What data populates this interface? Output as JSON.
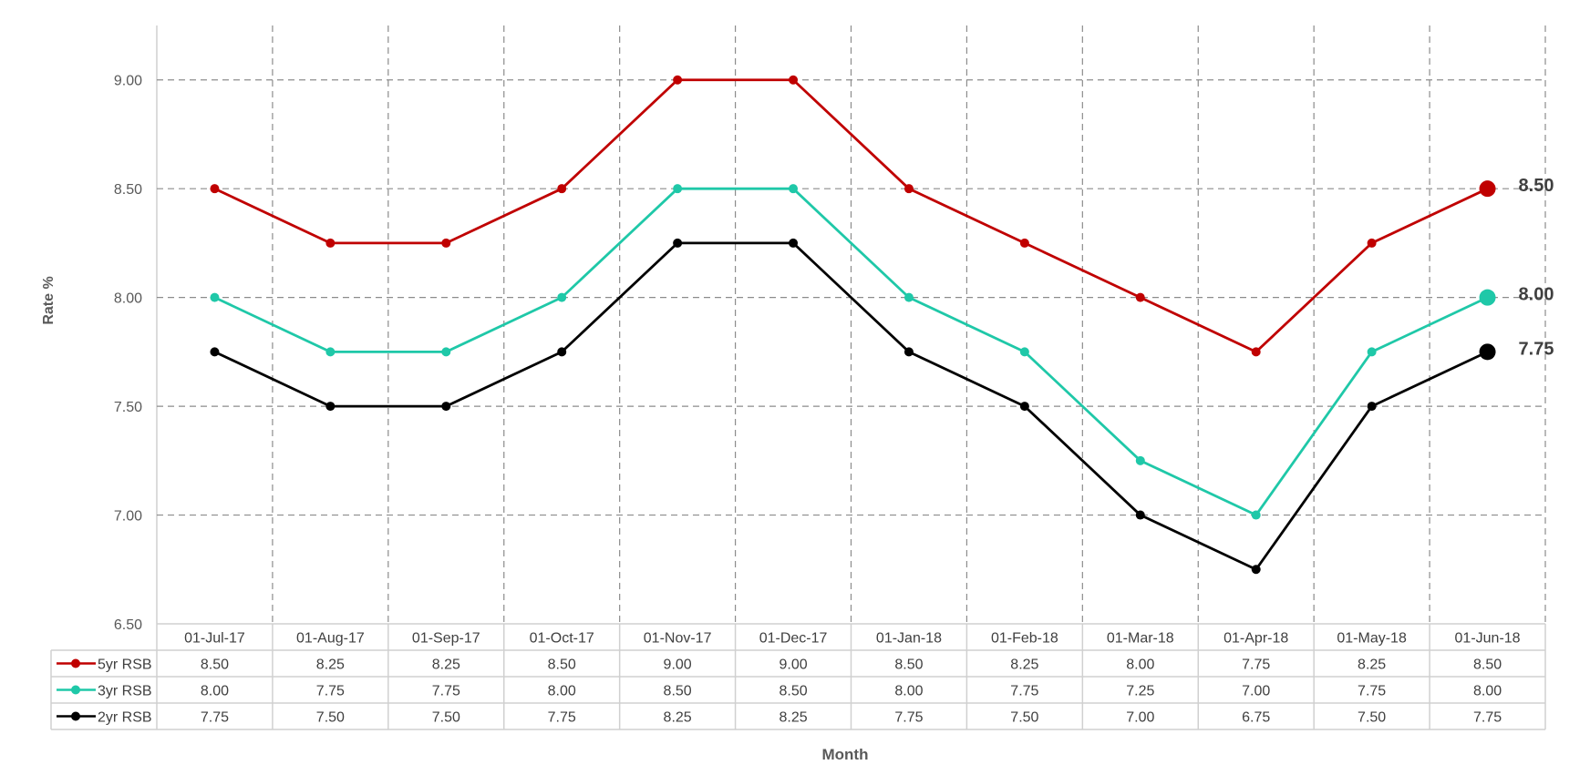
{
  "chart_data": {
    "type": "line",
    "title": "",
    "xlabel": "Month",
    "ylabel": "Rate %",
    "ylim": [
      6.5,
      9.25
    ],
    "yticks": [
      "6.50",
      "7.00",
      "7.50",
      "8.00",
      "8.50",
      "9.00"
    ],
    "grid": true,
    "legend": "data-table-left",
    "categories": [
      "01-Jul-17",
      "01-Aug-17",
      "01-Sep-17",
      "01-Oct-17",
      "01-Nov-17",
      "01-Dec-17",
      "01-Jan-18",
      "01-Feb-18",
      "01-Mar-18",
      "01-Apr-18",
      "01-May-18",
      "01-Jun-18"
    ],
    "series": [
      {
        "name": "5yr RSB",
        "color": "#c00000",
        "values": [
          8.5,
          8.25,
          8.25,
          8.5,
          9.0,
          9.0,
          8.5,
          8.25,
          8.0,
          7.75,
          8.25,
          8.5
        ],
        "end_label": "8.50"
      },
      {
        "name": "3yr RSB",
        "color": "#1fc8a8",
        "values": [
          8.0,
          7.75,
          7.75,
          8.0,
          8.5,
          8.5,
          8.0,
          7.75,
          7.25,
          7.0,
          7.75,
          8.0
        ],
        "end_label": "8.00"
      },
      {
        "name": "2yr RSB",
        "color": "#000000",
        "values": [
          7.75,
          7.5,
          7.5,
          7.75,
          8.25,
          8.25,
          7.75,
          7.5,
          7.0,
          6.75,
          7.5,
          7.75
        ],
        "end_label": "7.75"
      }
    ]
  }
}
